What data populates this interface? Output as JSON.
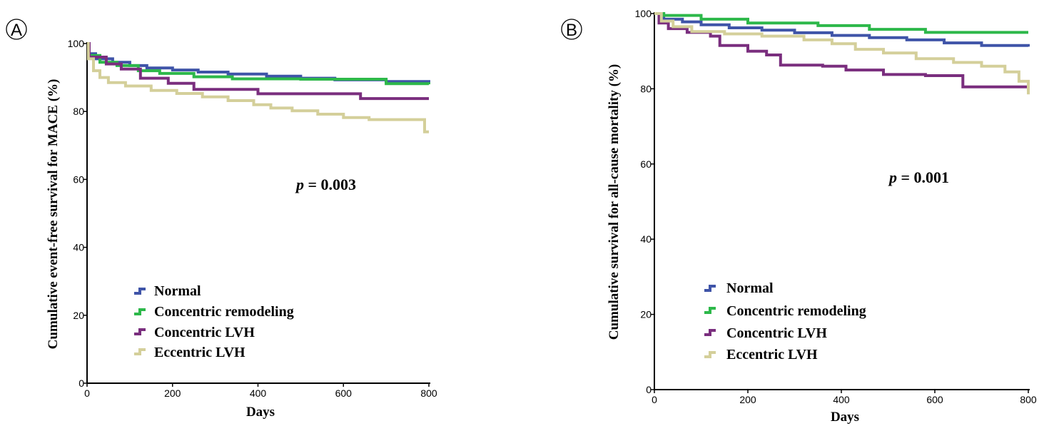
{
  "chart_data": [
    {
      "type": "line",
      "panel_label": "A",
      "xlabel": "Days",
      "ylabel": "Cumulative event-free survival for MACE (%)",
      "xlim": [
        0,
        800
      ],
      "ylim": [
        0,
        100
      ],
      "xticks": [
        0,
        200,
        400,
        600,
        800
      ],
      "yticks": [
        0,
        20,
        40,
        60,
        80,
        100
      ],
      "annotation": {
        "italic": "p",
        "text": " = 0.003"
      },
      "legend_position": "lower-left",
      "series": [
        {
          "name": "Normal",
          "color": "#3f54a8",
          "x": [
            0,
            5,
            20,
            60,
            100,
            140,
            200,
            260,
            330,
            420,
            500,
            580,
            700,
            800
          ],
          "y": [
            100,
            97,
            95.5,
            94.5,
            93.5,
            92.8,
            92.2,
            91.6,
            91.0,
            90.4,
            89.8,
            89.3,
            88.8,
            88.5
          ]
        },
        {
          "name": "Concentric remodeling",
          "color": "#2db84a",
          "x": [
            0,
            5,
            30,
            70,
            120,
            170,
            250,
            340,
            500,
            700,
            800
          ],
          "y": [
            100,
            96.5,
            94.5,
            93.5,
            92.0,
            91.2,
            90.2,
            89.6,
            89.5,
            88.2,
            88.0
          ]
        },
        {
          "name": "Concentric LVH",
          "color": "#7a2e7e",
          "x": [
            0,
            5,
            45,
            80,
            125,
            190,
            250,
            400,
            640,
            800
          ],
          "y": [
            100,
            96.0,
            94.0,
            92.5,
            89.8,
            88.3,
            86.5,
            85.2,
            83.8,
            83.8
          ]
        },
        {
          "name": "Eccentric LVH",
          "color": "#d4cf9a",
          "x": [
            0,
            3,
            15,
            30,
            50,
            90,
            150,
            210,
            270,
            330,
            390,
            430,
            480,
            540,
            600,
            660,
            790,
            800
          ],
          "y": [
            100,
            95.5,
            92.0,
            90.0,
            88.5,
            87.5,
            86.2,
            85.3,
            84.3,
            83.2,
            82.0,
            81.0,
            80.2,
            79.2,
            78.2,
            77.6,
            74.0,
            74.0
          ]
        }
      ]
    },
    {
      "type": "line",
      "panel_label": "B",
      "xlabel": "Days",
      "ylabel": "Cumulative survival for all-cause mortality (%)",
      "xlim": [
        0,
        800
      ],
      "ylim": [
        0,
        100
      ],
      "xticks": [
        0,
        200,
        400,
        600,
        800
      ],
      "yticks": [
        0,
        20,
        40,
        60,
        80,
        100
      ],
      "annotation": {
        "italic": "p",
        "text": " = 0.001"
      },
      "legend_position": "lower-left",
      "series": [
        {
          "name": "Normal",
          "color": "#3f54a8",
          "x": [
            0,
            20,
            60,
            100,
            160,
            230,
            300,
            380,
            460,
            540,
            620,
            700,
            800
          ],
          "y": [
            100,
            98.5,
            97.8,
            97.0,
            96.2,
            95.6,
            94.9,
            94.2,
            93.6,
            93.0,
            92.2,
            91.5,
            91.2
          ]
        },
        {
          "name": "Concentric remodeling",
          "color": "#2db84a",
          "x": [
            0,
            20,
            100,
            200,
            350,
            460,
            580,
            800
          ],
          "y": [
            100,
            99.5,
            98.5,
            97.5,
            96.8,
            95.8,
            95.0,
            95.0
          ]
        },
        {
          "name": "Concentric LVH",
          "color": "#7a2e7e",
          "x": [
            0,
            10,
            30,
            70,
            120,
            140,
            200,
            240,
            270,
            360,
            410,
            490,
            580,
            660,
            800
          ],
          "y": [
            100,
            97.5,
            96.0,
            95.0,
            94.0,
            91.5,
            90.0,
            89.0,
            86.3,
            86.0,
            85.0,
            83.8,
            83.5,
            80.5,
            80.5
          ]
        },
        {
          "name": "Eccentric LVH",
          "color": "#d4cf9a",
          "x": [
            0,
            15,
            40,
            80,
            150,
            230,
            320,
            380,
            430,
            490,
            560,
            640,
            700,
            750,
            780,
            800
          ],
          "y": [
            100,
            98.0,
            96.5,
            95.2,
            94.6,
            94.0,
            93.0,
            92.0,
            90.5,
            89.5,
            88.0,
            87.0,
            86.0,
            84.5,
            82.0,
            78.5
          ]
        }
      ]
    }
  ]
}
